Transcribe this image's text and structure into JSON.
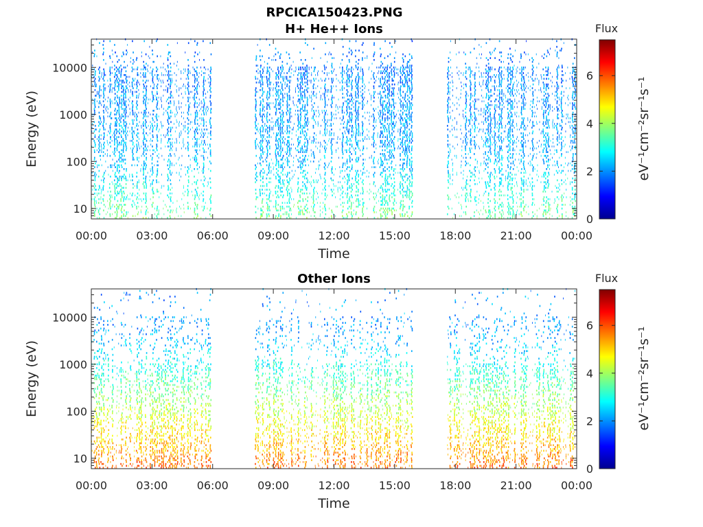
{
  "figure": {
    "title": "RPCICA150423.PNG"
  },
  "chart_data": [
    {
      "type": "heatmap",
      "title": "H+ He++ Ions",
      "xlabel": "Time",
      "ylabel": "Energy (eV)",
      "y_scale": "log",
      "xlim": [
        "00:00",
        "24:00"
      ],
      "ylim": [
        6,
        40000
      ],
      "xticks": [
        "00:00",
        "03:00",
        "06:00",
        "09:00",
        "12:00",
        "15:00",
        "18:00",
        "21:00",
        "00:00"
      ],
      "yticks": [
        "10",
        "100",
        "1000",
        "10000"
      ],
      "ytick_values": [
        10,
        100,
        1000,
        10000
      ],
      "data_intervals": [
        [
          "00:00",
          "05:50"
        ],
        [
          "08:05",
          "15:50"
        ],
        [
          "17:35",
          "23:55"
        ]
      ],
      "colorbar": {
        "label": "Flux",
        "units_label": "eV⁻¹cm⁻²sr⁻¹s⁻¹",
        "range": [
          0,
          7.5
        ],
        "ticks": [
          "0",
          "2",
          "4",
          "6"
        ],
        "tick_values": [
          0,
          2,
          4,
          6
        ],
        "colormap": "jet"
      },
      "profile": {
        "peak_energy_eV": 3000,
        "peak_flux": 2.0,
        "low_energy_flux": 3.2
      }
    },
    {
      "type": "heatmap",
      "title": "Other Ions",
      "xlabel": "Time",
      "ylabel": "Energy (eV)",
      "y_scale": "log",
      "xlim": [
        "00:00",
        "24:00"
      ],
      "ylim": [
        6,
        40000
      ],
      "xticks": [
        "00:00",
        "03:00",
        "06:00",
        "09:00",
        "12:00",
        "15:00",
        "18:00",
        "21:00",
        "00:00"
      ],
      "yticks": [
        "10",
        "100",
        "1000",
        "10000"
      ],
      "ytick_values": [
        10,
        100,
        1000,
        10000
      ],
      "data_intervals": [
        [
          "00:00",
          "05:50"
        ],
        [
          "08:05",
          "15:50"
        ],
        [
          "17:35",
          "23:55"
        ]
      ],
      "colorbar": {
        "label": "Flux",
        "units_label": "eV⁻¹cm⁻²sr⁻¹s⁻¹",
        "range": [
          0,
          7.5
        ],
        "ticks": [
          "0",
          "2",
          "4",
          "6"
        ],
        "tick_values": [
          0,
          2,
          4,
          6
        ],
        "colormap": "jet"
      },
      "profile": {
        "peak_energy_eV": 10,
        "peak_flux": 5.5,
        "high_energy_flux": 2.2
      }
    }
  ]
}
